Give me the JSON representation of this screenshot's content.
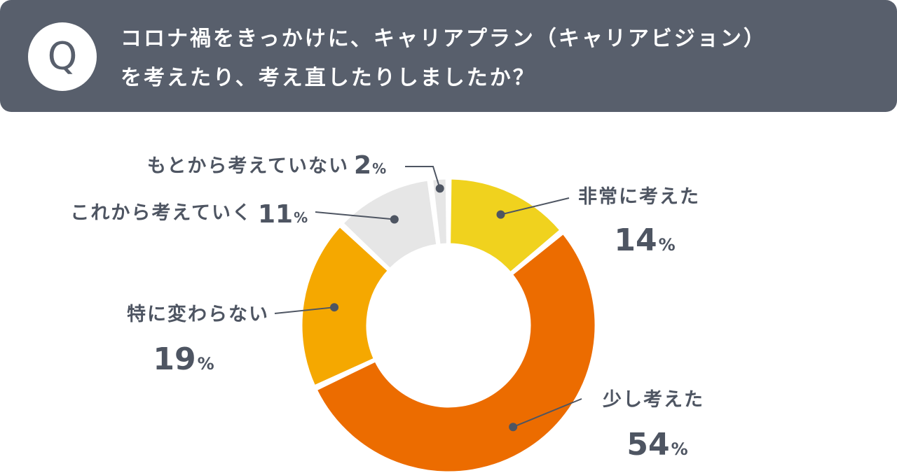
{
  "question": {
    "badge": "Q",
    "line1": "コロナ禍をきっかけに、キャリアプラン（キャリアビジョン）",
    "line2": "を考えたり、考え直したりしましたか？"
  },
  "chart_data": {
    "type": "pie",
    "variant": "donut",
    "title": "",
    "unit": "%",
    "categories": [
      "非常に考えた",
      "少し考えた",
      "特に変わらない",
      "これから考えていく",
      "もとから考えていない"
    ],
    "values": [
      14,
      54,
      19,
      11,
      2
    ],
    "colors": [
      "#f0d21e",
      "#ec6c00",
      "#f5a800",
      "#e6e6e6",
      "#e6e6e6"
    ],
    "start": "top",
    "direction": "clockwise",
    "label_color": "#4e5562",
    "leader_color": "#4e5562"
  }
}
